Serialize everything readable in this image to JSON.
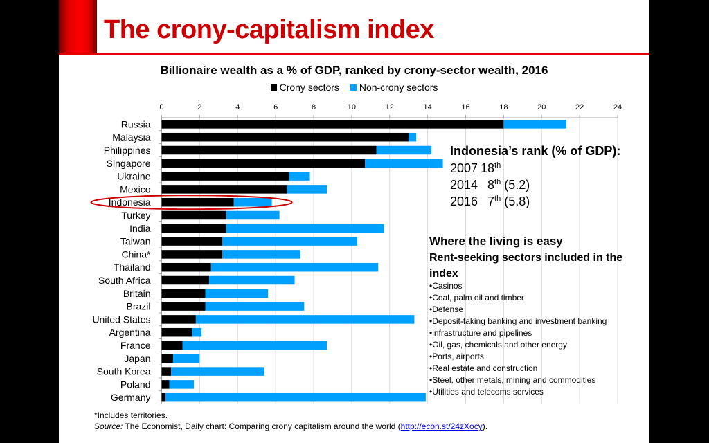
{
  "slide": {
    "title": "The crony-capitalism index"
  },
  "colors": {
    "crony": "#000000",
    "non_crony": "#00a0ff",
    "accent": "#cc0000"
  },
  "chart_data": {
    "type": "bar",
    "orientation": "horizontal",
    "stacked": true,
    "title": "Billionaire wealth as a % of GDP, ranked by crony-sector wealth, 2016",
    "xlabel": "",
    "ylabel": "",
    "xlim": [
      0,
      24
    ],
    "xticks": [
      0,
      2,
      4,
      6,
      8,
      10,
      12,
      14,
      16,
      18,
      20,
      22,
      24
    ],
    "grid": true,
    "legend_position": "top-center",
    "categories": [
      "Russia",
      "Malaysia",
      "Philippines",
      "Singapore",
      "Ukraine",
      "Mexico",
      "Indonesia",
      "Turkey",
      "India",
      "Taiwan",
      "China*",
      "Thailand",
      "South Africa",
      "Britain",
      "Brazil",
      "United States",
      "Argentina",
      "France",
      "Japan",
      "South Korea",
      "Poland",
      "Germany"
    ],
    "series": [
      {
        "name": "Crony sectors",
        "values": [
          18.0,
          13.0,
          11.3,
          10.7,
          6.7,
          6.6,
          3.8,
          3.4,
          3.4,
          3.2,
          3.2,
          2.6,
          2.5,
          2.3,
          2.3,
          1.8,
          1.6,
          1.1,
          0.6,
          0.5,
          0.4,
          0.2
        ]
      },
      {
        "name": "Non-crony sectors",
        "values": [
          3.3,
          0.4,
          2.9,
          4.1,
          1.1,
          2.1,
          2.0,
          2.8,
          8.3,
          7.1,
          4.1,
          8.8,
          4.5,
          3.3,
          5.2,
          11.5,
          0.5,
          7.6,
          1.4,
          4.9,
          1.3,
          13.7
        ]
      }
    ],
    "highlight": "Indonesia"
  },
  "rank_box": {
    "title": "Indonesia’s rank (% of GDP):",
    "rows": [
      {
        "year": "2007",
        "rank": "18",
        "suffix": "th",
        "value": ""
      },
      {
        "year": "2014",
        "rank": "8",
        "suffix": "th",
        "value": "(5.2)"
      },
      {
        "year": "2016",
        "rank": "7",
        "suffix": "th",
        "value": "(5.8)"
      }
    ]
  },
  "sectors_box": {
    "heading": "Where the living is easy",
    "subheading": "Rent-seeking sectors included in the index",
    "items": [
      "•Casinos",
      "•Coal, palm oil and timber",
      "•Defense",
      "•Deposit-taking banking and investment banking",
      "•infrastructure and pipelines",
      "•Oil, gas, chemicals and other energy",
      "•Ports, airports",
      "•Real estate and construction",
      "•Steel, other metals, mining and commodities",
      "•Utilities and telecoms services"
    ]
  },
  "footer": {
    "footnote": "*Includes territories.",
    "source_label": "Source:",
    "source_text": " The Economist, Daily chart: Comparing crony capitalism around the world (",
    "source_link": "http://econ.st/24zXocy",
    "source_end": ")."
  }
}
